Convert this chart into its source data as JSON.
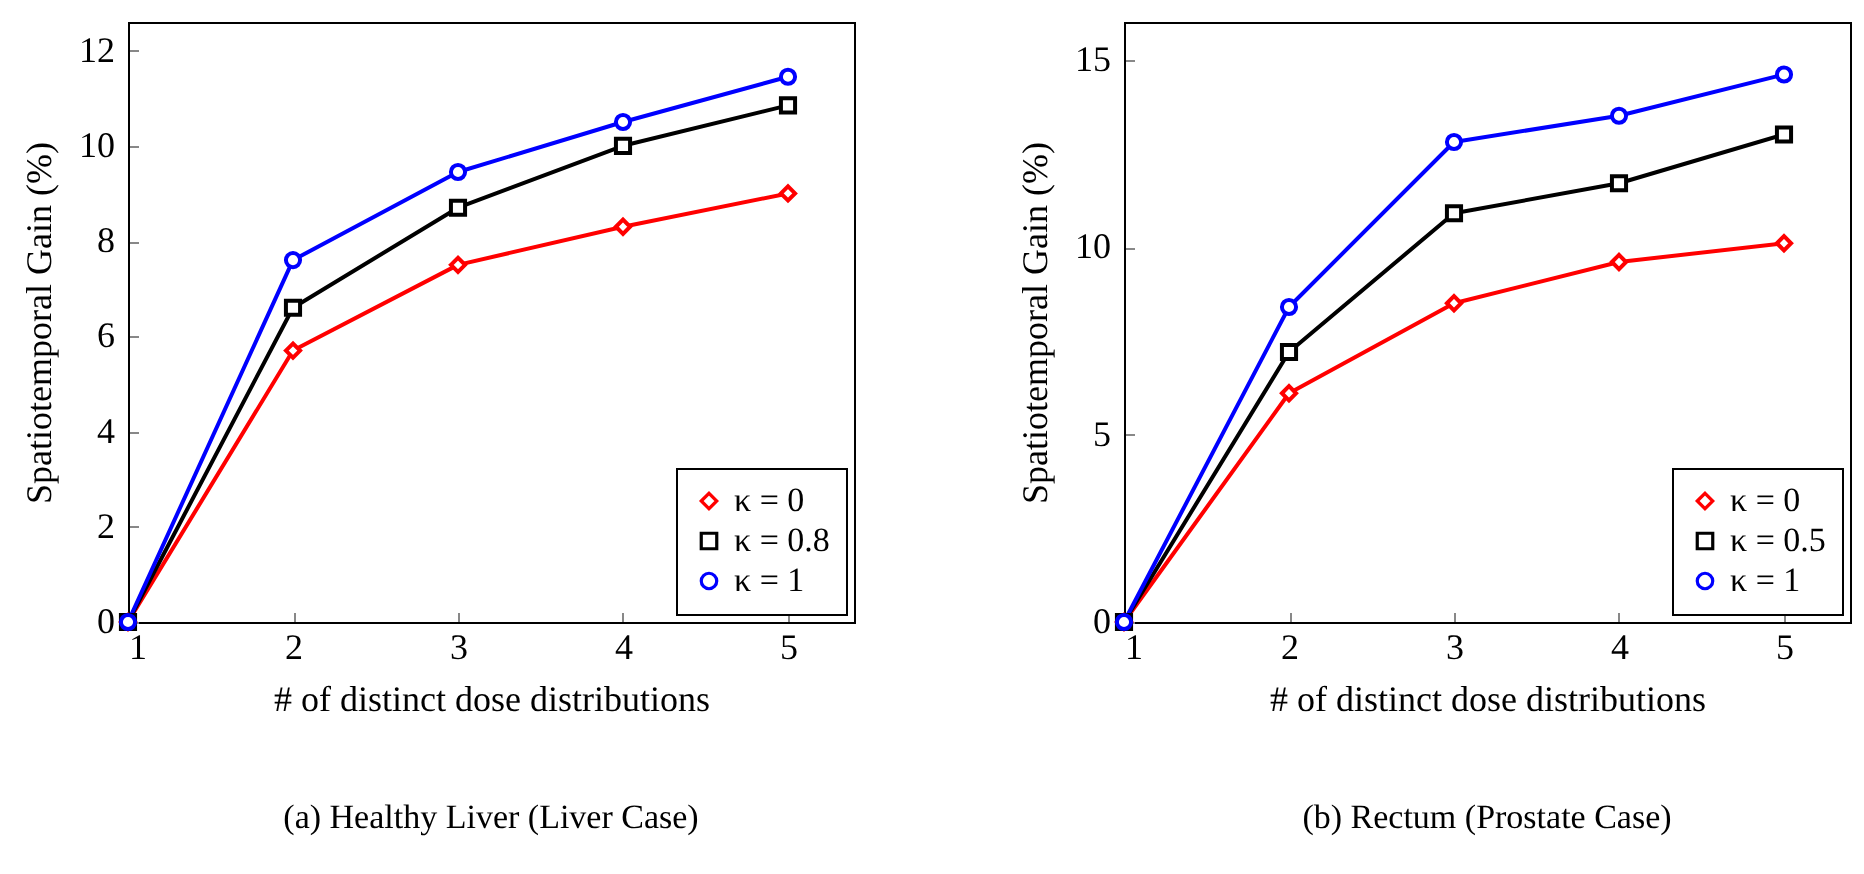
{
  "chart_data": [
    {
      "type": "line",
      "title": "(a)  Healthy Liver (Liver Case)",
      "xlabel": "# of distinct dose distributions",
      "ylabel": "Spatiotemporal Gain (%)",
      "x": [
        1,
        2,
        3,
        4,
        5
      ],
      "xlim": [
        1,
        5.4
      ],
      "xticks": [
        1,
        2,
        3,
        4,
        5
      ],
      "ylim": [
        0,
        12.6
      ],
      "yticks": [
        0,
        2,
        4,
        6,
        8,
        10,
        12
      ],
      "legend": "bottom right",
      "grid": false,
      "series": [
        {
          "name": "κ = 0",
          "color": "#ff0000",
          "marker": "diamond",
          "values": [
            0,
            5.7,
            7.5,
            8.3,
            9.0
          ]
        },
        {
          "name": "κ = 0.8",
          "color": "#000000",
          "marker": "square",
          "values": [
            0,
            6.6,
            8.7,
            10.0,
            10.85
          ]
        },
        {
          "name": "κ = 1",
          "color": "#0000ff",
          "marker": "circle",
          "values": [
            0,
            7.6,
            9.45,
            10.5,
            11.45
          ]
        }
      ]
    },
    {
      "type": "line",
      "title": "(b)  Rectum (Prostate Case)",
      "xlabel": "# of distinct dose distributions",
      "ylabel": "Spatiotemporal Gain (%)",
      "x": [
        1,
        2,
        3,
        4,
        5
      ],
      "xlim": [
        1,
        5.4
      ],
      "xticks": [
        1,
        2,
        3,
        4,
        5
      ],
      "ylim": [
        0,
        16
      ],
      "yticks": [
        0,
        5,
        10,
        15
      ],
      "legend": "bottom right",
      "grid": false,
      "series": [
        {
          "name": "κ = 0",
          "color": "#ff0000",
          "marker": "diamond",
          "values": [
            0,
            6.1,
            8.5,
            9.6,
            10.1
          ]
        },
        {
          "name": "κ = 0.5",
          "color": "#000000",
          "marker": "square",
          "values": [
            0,
            7.2,
            10.9,
            11.7,
            13.0
          ]
        },
        {
          "name": "κ = 1",
          "color": "#0000ff",
          "marker": "circle",
          "values": [
            0,
            8.4,
            12.8,
            13.5,
            14.6
          ]
        }
      ]
    }
  ]
}
